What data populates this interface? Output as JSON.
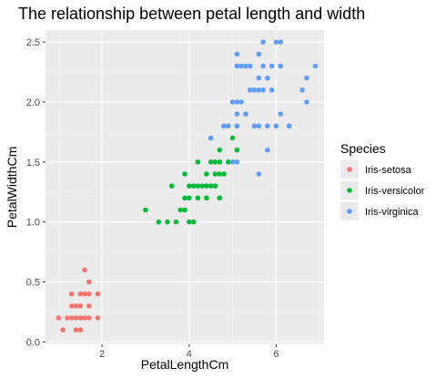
{
  "chart_data": {
    "type": "scatter",
    "title": "The relationship between petal length and width",
    "xlabel": "PetalLengthCm",
    "ylabel": "PetalWidthCm",
    "xlim": [
      0.7,
      7.1
    ],
    "ylim": [
      -0.02,
      2.6
    ],
    "x_ticks": [
      2,
      4,
      6
    ],
    "x_tick_labels": [
      "2",
      "4",
      "6"
    ],
    "y_ticks": [
      0.0,
      0.5,
      1.0,
      1.5,
      2.0,
      2.5
    ],
    "y_tick_labels": [
      "0.0",
      "0.5",
      "1.0",
      "1.5",
      "2.0",
      "2.5"
    ],
    "grid": true,
    "legend": {
      "title": "Species",
      "position": "right"
    },
    "series": [
      {
        "name": "Iris-setosa",
        "color": "#F8766D",
        "points": [
          [
            1.0,
            0.2
          ],
          [
            1.1,
            0.1
          ],
          [
            1.2,
            0.2
          ],
          [
            1.3,
            0.2
          ],
          [
            1.3,
            0.3
          ],
          [
            1.3,
            0.4
          ],
          [
            1.4,
            0.1
          ],
          [
            1.4,
            0.2
          ],
          [
            1.4,
            0.3
          ],
          [
            1.5,
            0.1
          ],
          [
            1.5,
            0.2
          ],
          [
            1.5,
            0.3
          ],
          [
            1.5,
            0.4
          ],
          [
            1.6,
            0.2
          ],
          [
            1.6,
            0.4
          ],
          [
            1.6,
            0.6
          ],
          [
            1.7,
            0.2
          ],
          [
            1.7,
            0.3
          ],
          [
            1.7,
            0.4
          ],
          [
            1.7,
            0.5
          ],
          [
            1.9,
            0.2
          ],
          [
            1.9,
            0.4
          ]
        ]
      },
      {
        "name": "Iris-versicolor",
        "color": "#00BA38",
        "points": [
          [
            3.0,
            1.1
          ],
          [
            3.3,
            1.0
          ],
          [
            3.5,
            1.0
          ],
          [
            3.6,
            1.3
          ],
          [
            3.7,
            1.0
          ],
          [
            3.8,
            1.1
          ],
          [
            3.9,
            1.1
          ],
          [
            3.9,
            1.2
          ],
          [
            3.9,
            1.4
          ],
          [
            4.0,
            1.0
          ],
          [
            4.0,
            1.2
          ],
          [
            4.0,
            1.3
          ],
          [
            4.1,
            1.0
          ],
          [
            4.1,
            1.3
          ],
          [
            4.2,
            1.2
          ],
          [
            4.2,
            1.3
          ],
          [
            4.2,
            1.5
          ],
          [
            4.3,
            1.3
          ],
          [
            4.4,
            1.2
          ],
          [
            4.4,
            1.3
          ],
          [
            4.4,
            1.4
          ],
          [
            4.5,
            1.3
          ],
          [
            4.5,
            1.5
          ],
          [
            4.5,
            1.7
          ],
          [
            4.6,
            1.3
          ],
          [
            4.6,
            1.4
          ],
          [
            4.6,
            1.5
          ],
          [
            4.7,
            1.2
          ],
          [
            4.7,
            1.4
          ],
          [
            4.7,
            1.5
          ],
          [
            4.7,
            1.6
          ],
          [
            4.8,
            1.4
          ],
          [
            4.8,
            1.8
          ],
          [
            4.9,
            1.5
          ],
          [
            5.0,
            1.7
          ],
          [
            5.1,
            1.6
          ]
        ]
      },
      {
        "name": "Iris-virginica",
        "color": "#619CFF",
        "points": [
          [
            4.5,
            1.7
          ],
          [
            4.8,
            1.8
          ],
          [
            4.9,
            1.8
          ],
          [
            5.0,
            1.5
          ],
          [
            5.0,
            2.0
          ],
          [
            5.1,
            1.5
          ],
          [
            5.1,
            1.8
          ],
          [
            5.1,
            1.9
          ],
          [
            5.1,
            2.0
          ],
          [
            5.1,
            2.3
          ],
          [
            5.1,
            2.4
          ],
          [
            5.2,
            2.0
          ],
          [
            5.2,
            2.3
          ],
          [
            5.3,
            1.9
          ],
          [
            5.3,
            2.3
          ],
          [
            5.4,
            2.1
          ],
          [
            5.4,
            2.3
          ],
          [
            5.5,
            1.8
          ],
          [
            5.5,
            2.1
          ],
          [
            5.6,
            1.4
          ],
          [
            5.6,
            1.8
          ],
          [
            5.6,
            2.1
          ],
          [
            5.6,
            2.2
          ],
          [
            5.6,
            2.4
          ],
          [
            5.7,
            2.1
          ],
          [
            5.7,
            2.3
          ],
          [
            5.7,
            2.5
          ],
          [
            5.8,
            1.6
          ],
          [
            5.8,
            1.8
          ],
          [
            5.8,
            2.2
          ],
          [
            5.9,
            2.1
          ],
          [
            5.9,
            2.3
          ],
          [
            6.0,
            1.8
          ],
          [
            6.0,
            2.5
          ],
          [
            6.1,
            1.9
          ],
          [
            6.1,
            2.3
          ],
          [
            6.1,
            2.5
          ],
          [
            6.3,
            1.8
          ],
          [
            6.6,
            2.1
          ],
          [
            6.7,
            2.0
          ],
          [
            6.7,
            2.2
          ],
          [
            6.9,
            2.3
          ]
        ]
      }
    ]
  }
}
